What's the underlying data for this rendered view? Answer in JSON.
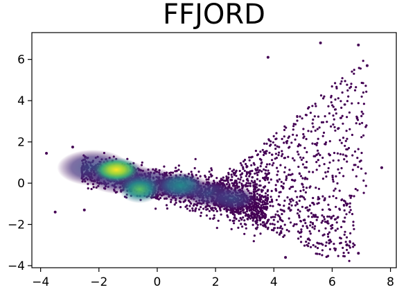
{
  "chart_data": {
    "type": "scatter",
    "title": "FFJORD",
    "xlabel": "",
    "ylabel": "",
    "xlim": [
      -4.3,
      8.2
    ],
    "ylim": [
      -4.1,
      7.3
    ],
    "xticks": [
      -4,
      -2,
      0,
      2,
      4,
      6,
      8
    ],
    "yticks": [
      -4,
      -2,
      0,
      2,
      4,
      6
    ],
    "xtick_labels": [
      "−4",
      "−2",
      "0",
      "2",
      "4",
      "6",
      "8"
    ],
    "ytick_labels": [
      "−4",
      "−2",
      "0",
      "2",
      "4",
      "6"
    ],
    "grid": false,
    "colormap": "viridis",
    "colors": {
      "low_density": "#440154",
      "mid_density": "#31688e",
      "high_density": "#35b779",
      "peak_density": "#fde725"
    },
    "density_peaks": [
      {
        "x": -1.4,
        "y": 0.65
      },
      {
        "x": -0.6,
        "y": -0.3
      },
      {
        "x": 0.8,
        "y": -0.1
      }
    ],
    "outliers": [
      {
        "x": -3.8,
        "y": 1.45
      },
      {
        "x": -3.5,
        "y": -1.4
      },
      {
        "x": 7.7,
        "y": 0.75
      },
      {
        "x": 5.6,
        "y": 6.8
      },
      {
        "x": 6.9,
        "y": 6.7
      },
      {
        "x": 7.2,
        "y": 5.7
      },
      {
        "x": 3.8,
        "y": 6.1
      },
      {
        "x": 6.9,
        "y": -3.4
      },
      {
        "x": 4.4,
        "y": -3.6
      },
      {
        "x": 6.5,
        "y": -3.0
      },
      {
        "x": -2.9,
        "y": 1.75
      },
      {
        "x": -2.5,
        "y": -1.3
      }
    ]
  }
}
